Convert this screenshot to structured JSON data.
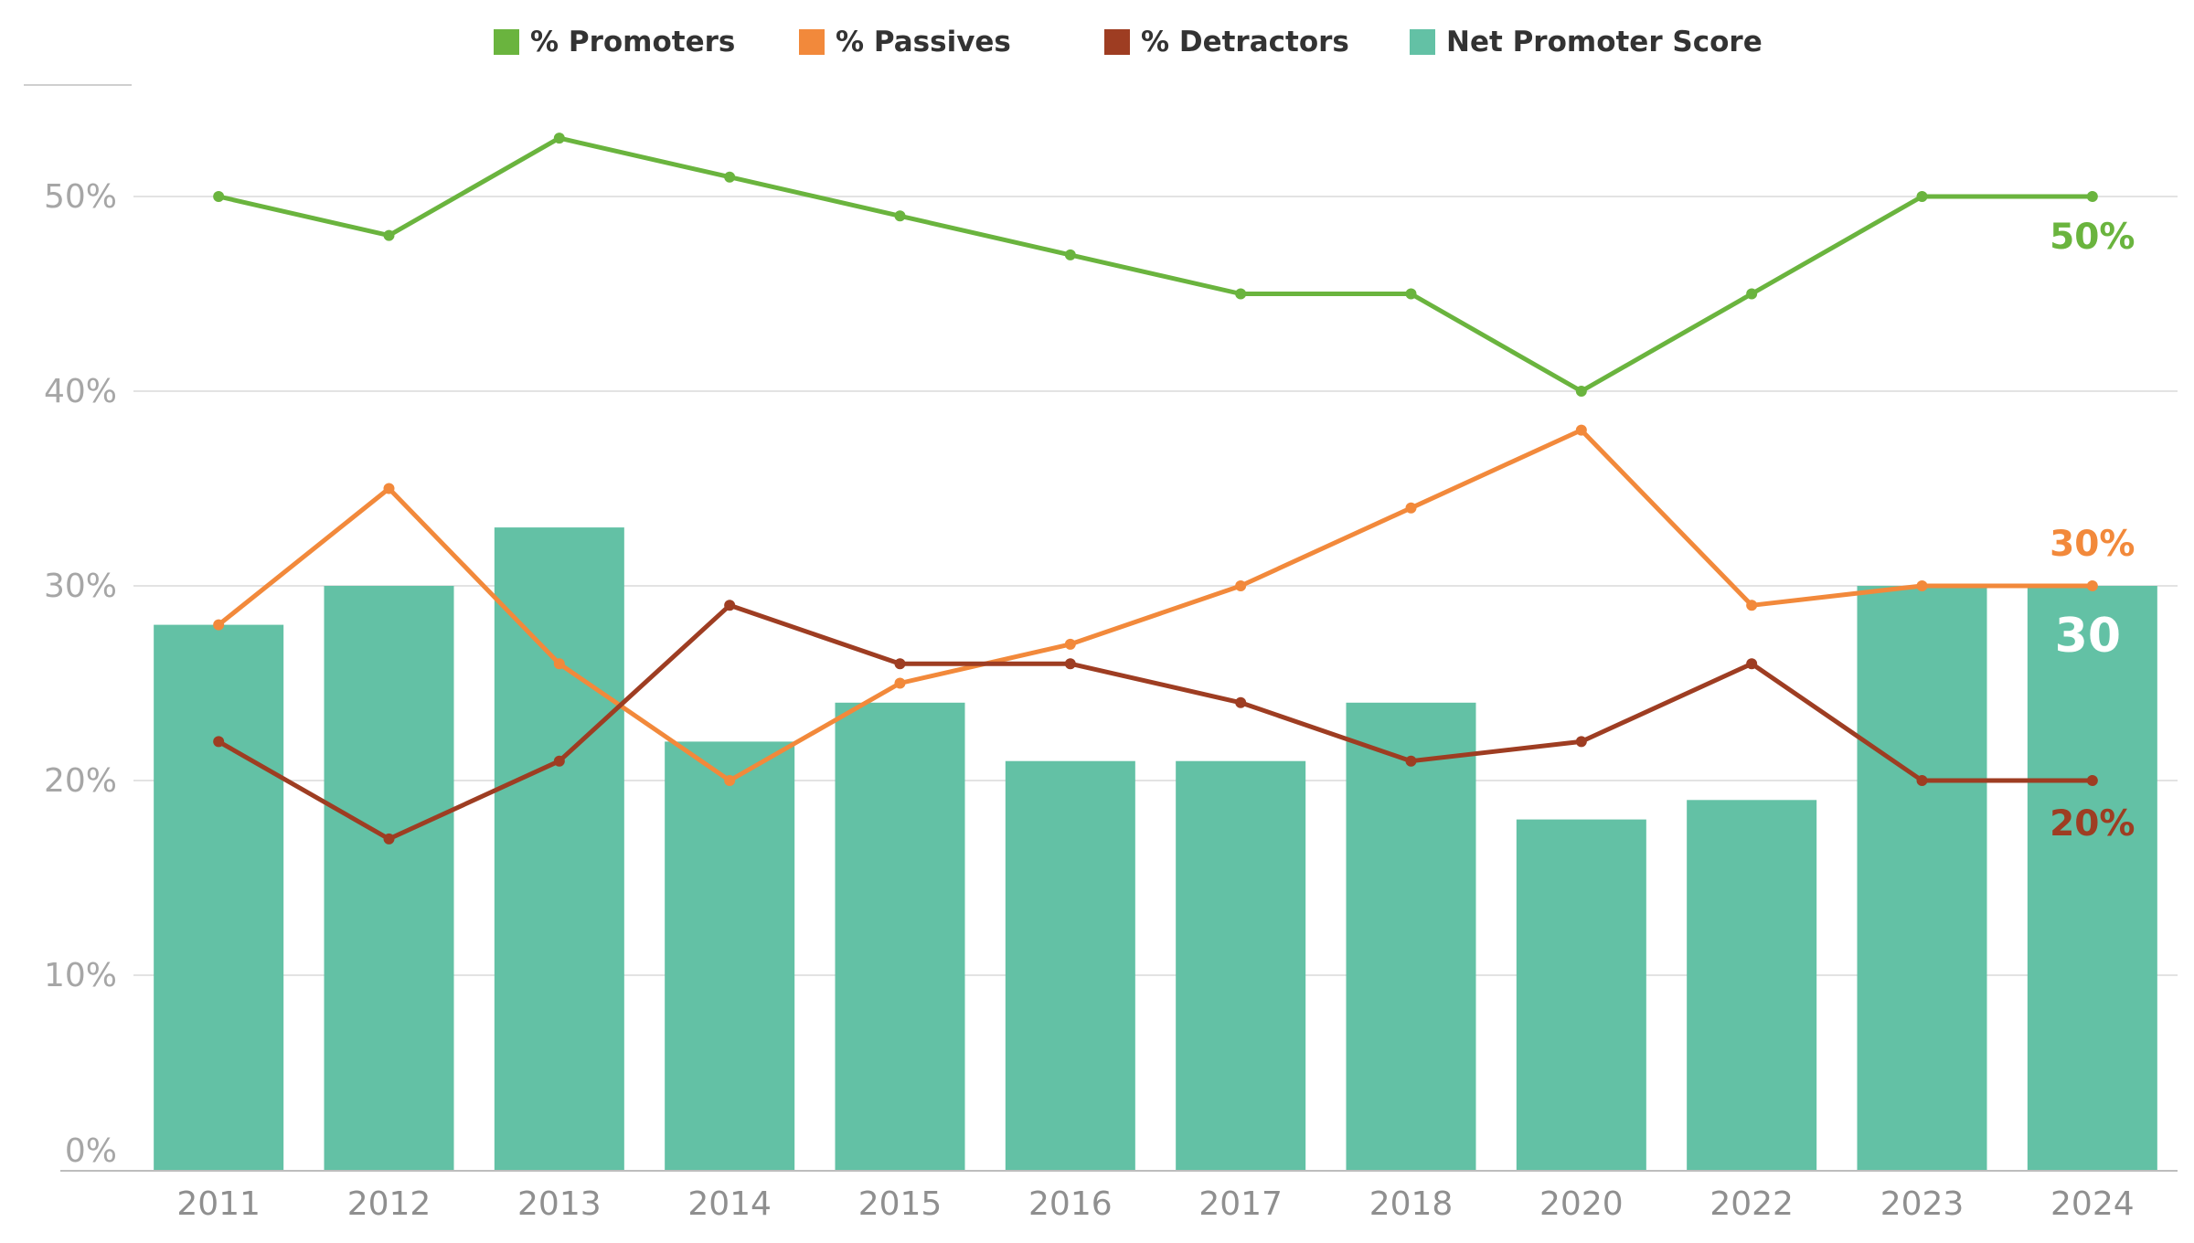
{
  "legend": {
    "items": [
      {
        "label": "% Promoters",
        "color": "#6ab43e"
      },
      {
        "label": "% Passives",
        "color": "#f2893b"
      },
      {
        "label": "% Detractors",
        "color": "#9e3d22"
      },
      {
        "label": "Net Promoter Score",
        "color": "#63c1a5"
      }
    ]
  },
  "chart_data": {
    "type": "bar",
    "categories": [
      "2011",
      "2012",
      "2013",
      "2014",
      "2015",
      "2016",
      "2017",
      "2018",
      "2020",
      "2022",
      "2023",
      "2024"
    ],
    "y_ticks": [
      "0%",
      "10%",
      "20%",
      "30%",
      "40%",
      "50%"
    ],
    "ylim": [
      0,
      56
    ],
    "grid": true,
    "legend_position": "top",
    "bars": {
      "name": "Net Promoter Score",
      "color": "#63c1a5",
      "values": [
        28,
        30,
        33,
        22,
        24,
        21,
        21,
        24,
        18,
        19,
        30,
        30
      ],
      "end_label": "30"
    },
    "lines": [
      {
        "name": "% Promoters",
        "color": "#6ab43e",
        "values": [
          50,
          48,
          53,
          51,
          49,
          47,
          45,
          45,
          40,
          45,
          50,
          50
        ],
        "end_label": "50%"
      },
      {
        "name": "% Passives",
        "color": "#f2893b",
        "values": [
          28,
          35,
          26,
          20,
          25,
          27,
          30,
          34,
          38,
          29,
          30,
          30
        ],
        "end_label": "30%"
      },
      {
        "name": "% Detractors",
        "color": "#9e3d22",
        "values": [
          22,
          17,
          21,
          29,
          26,
          26,
          24,
          21,
          22,
          26,
          20,
          20
        ],
        "end_label": "20%"
      }
    ]
  }
}
